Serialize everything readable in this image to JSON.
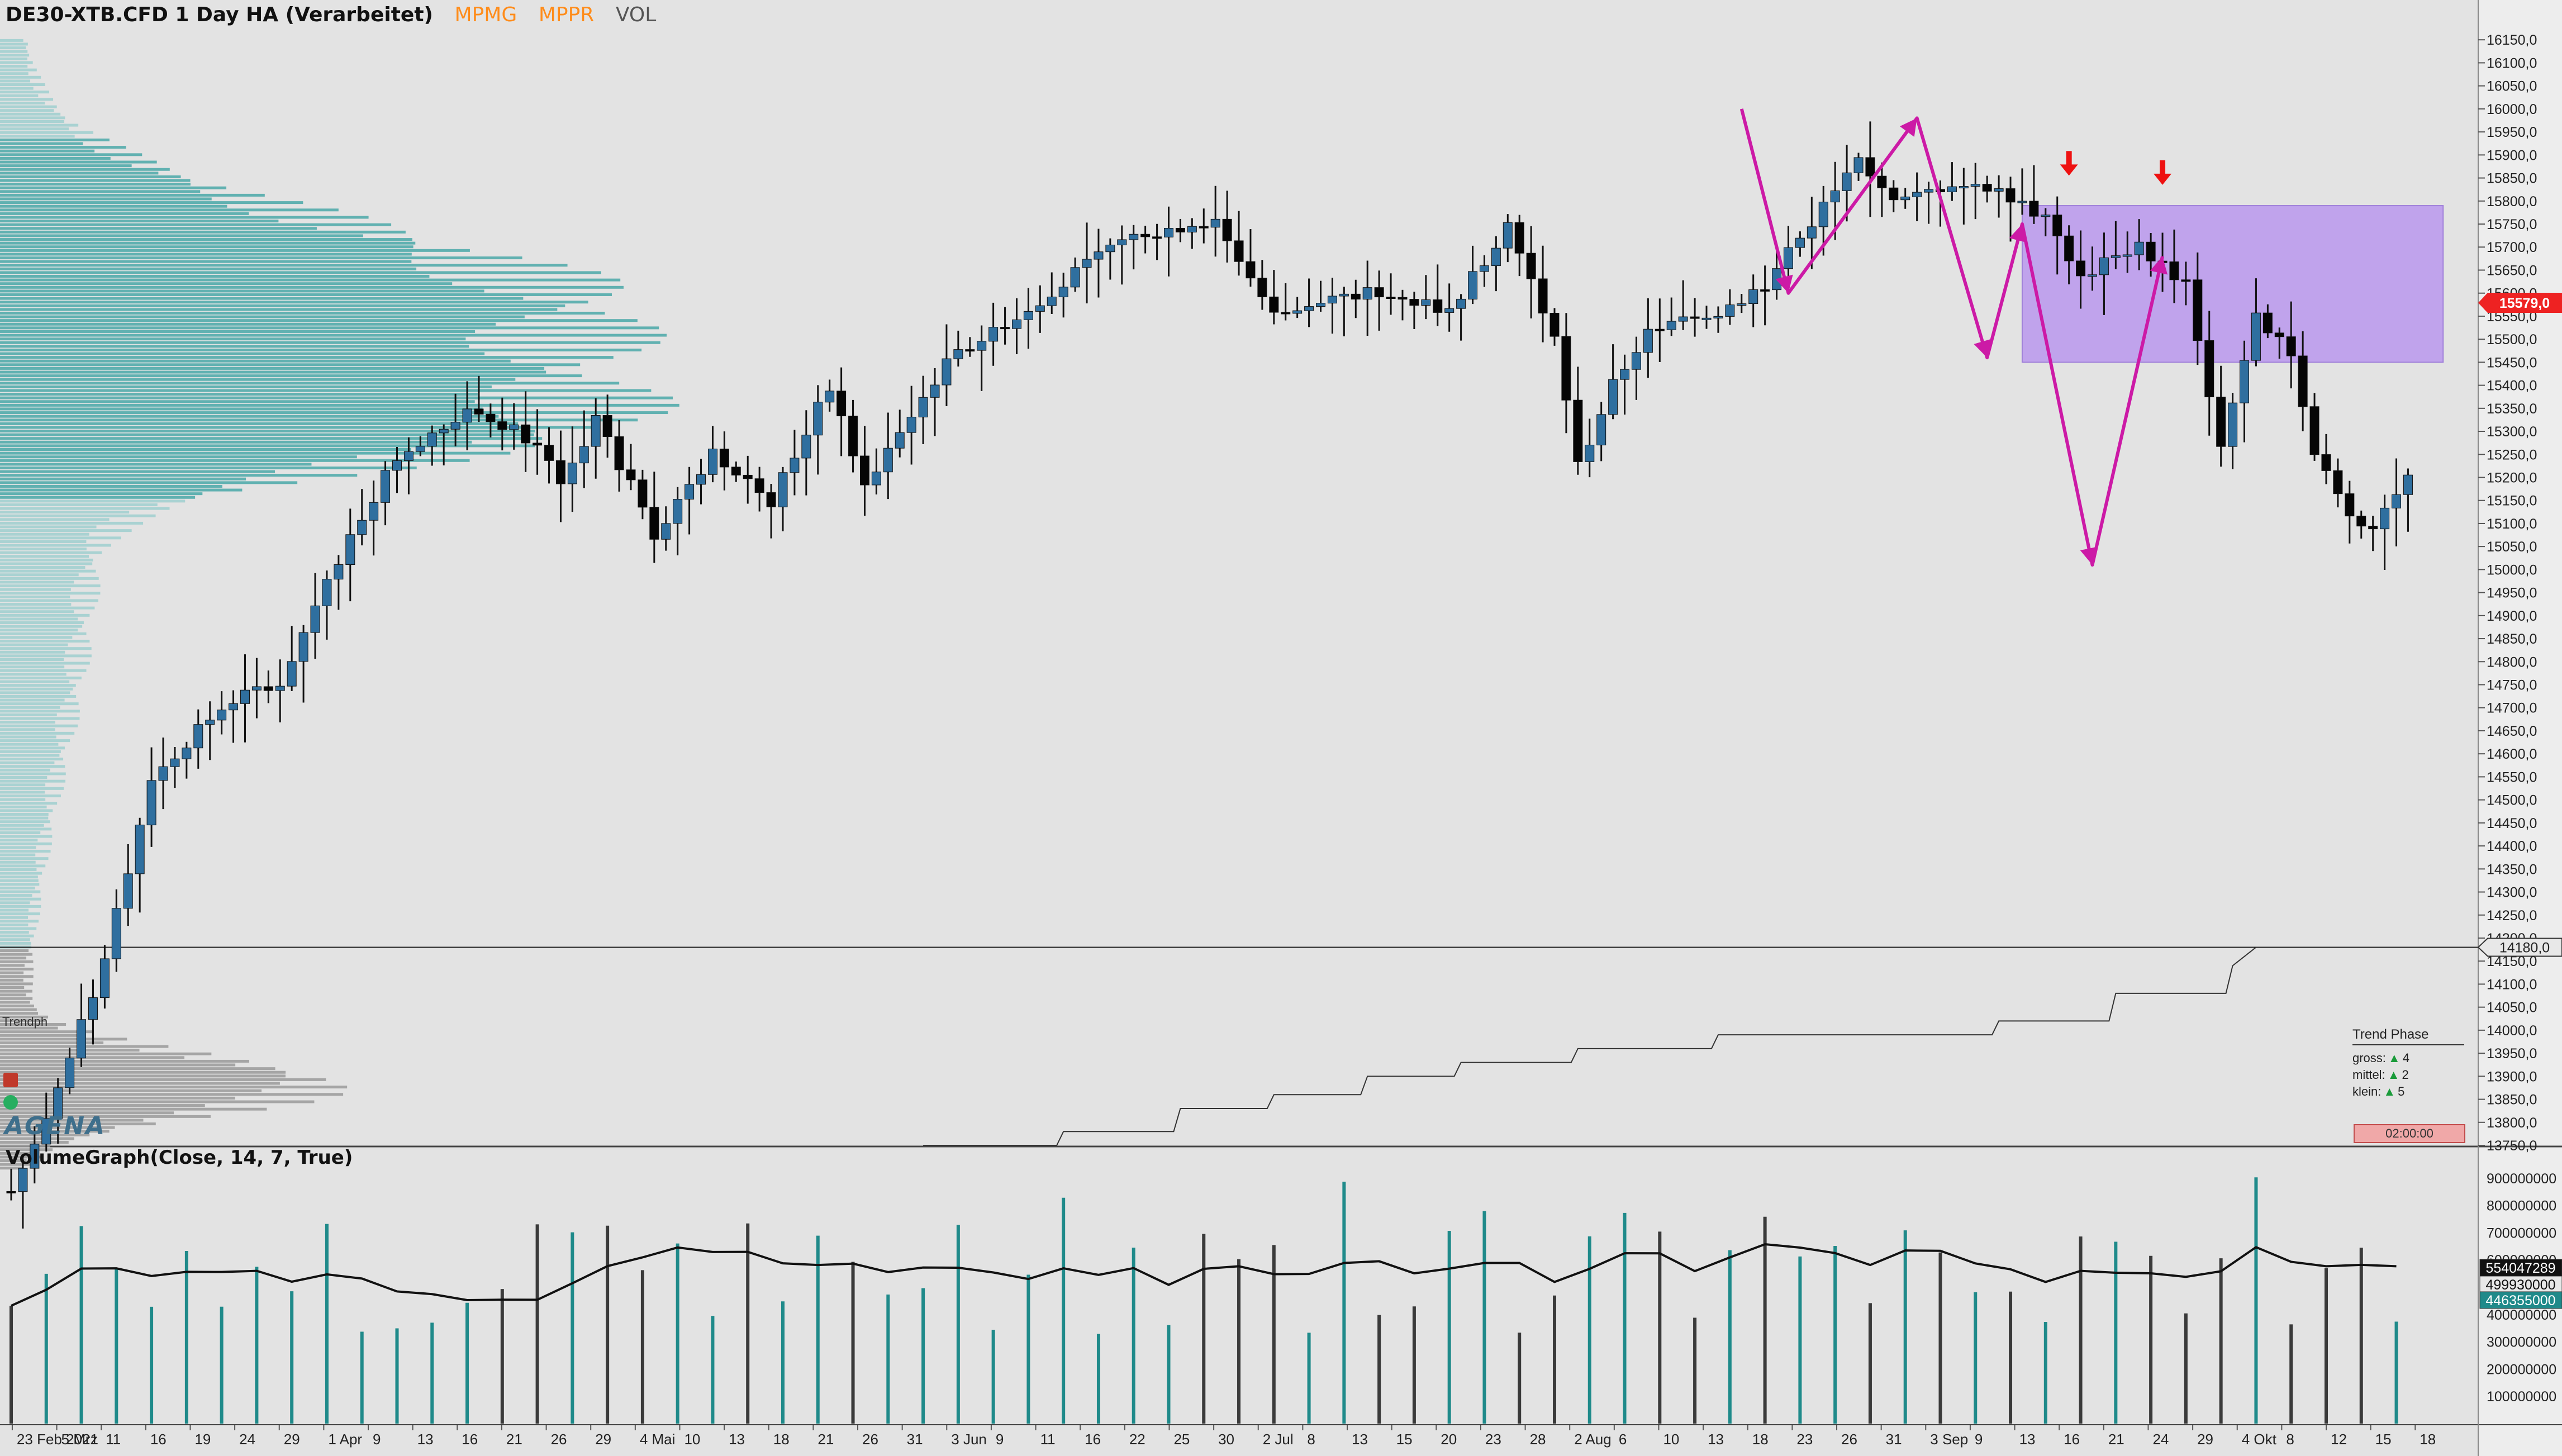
{
  "header": {
    "title": "DE30-XTB.CFD 1 Day HA (Verarbeitet)",
    "indicators": [
      "MPMG",
      "MPPR",
      "VOL"
    ]
  },
  "volume_panel": {
    "title": "VolumeGraph(Close, 14, 7, True)"
  },
  "trend_phase": {
    "title": "Trend Phase",
    "rows": [
      {
        "label": "gross:",
        "value": "4"
      },
      {
        "label": "mittel:",
        "value": "2"
      },
      {
        "label": "klein:",
        "value": "5"
      }
    ]
  },
  "clock": "02:00:00",
  "logo": "AGENA",
  "trendph_label": "Trendph",
  "colors": {
    "bull": "#2f6f9f",
    "bear": "#050505",
    "zigzag": "#cc1aa6",
    "zone": "#b58ef0",
    "arrow": "#ee1111",
    "profile": "#3aa0a0",
    "volume_up": "#1f8a8a",
    "volume_down": "#3a3a3a",
    "price_tag": "#ee2222"
  },
  "chart_data": [
    {
      "type": "candlestick",
      "title": "DE30-XTB.CFD 1 Day HA (Verarbeitet)",
      "x_labels": [
        "23 Feb 2021",
        "5 Mrz",
        "11",
        "16",
        "19",
        "24",
        "29",
        "1 Apr",
        "9",
        "13",
        "16",
        "21",
        "26",
        "29",
        "4 Mai",
        "10",
        "13",
        "18",
        "21",
        "26",
        "31",
        "3 Jun",
        "9",
        "11",
        "16",
        "22",
        "25",
        "30",
        "2 Jul",
        "8",
        "13",
        "15",
        "20",
        "23",
        "28",
        "2 Aug",
        "6",
        "10",
        "13",
        "18",
        "23",
        "26",
        "31",
        "3 Sep",
        "9",
        "13",
        "16",
        "21",
        "24",
        "29",
        "4 Okt",
        "8",
        "12",
        "15",
        "18"
      ],
      "y_ticks": [
        "16150,0",
        "16100,0",
        "16050,0",
        "16000,0",
        "15950,0",
        "15900,0",
        "15850,0",
        "15800,0",
        "15750,0",
        "15700,0",
        "15650,0",
        "15600,0",
        "15550,0",
        "15500,0",
        "15450,0",
        "15400,0",
        "15350,0",
        "15300,0",
        "15250,0",
        "15200,0",
        "15150,0",
        "15100,0",
        "15050,0",
        "15000,0",
        "14950,0",
        "14900,0",
        "14850,0",
        "14800,0",
        "14750,0",
        "14700,0",
        "14650,0",
        "14600,0",
        "14550,0",
        "14500,0",
        "14450,0",
        "14400,0",
        "14350,0",
        "14300,0",
        "14250,0",
        "14200,0",
        "14150,0",
        "14100,0",
        "14050,0",
        "14000,0",
        "13950,0",
        "13900,0",
        "13850,0",
        "13800,0",
        "13750,0"
      ],
      "ylim": [
        13750,
        16200
      ],
      "current_price": "15579,0",
      "reference_price": "14180,0",
      "waypoints": [
        [
          0,
          13650
        ],
        [
          3,
          13800
        ],
        [
          8,
          14150
        ],
        [
          12,
          14550
        ],
        [
          16,
          14650
        ],
        [
          19,
          14720
        ],
        [
          23,
          14750
        ],
        [
          27,
          14980
        ],
        [
          33,
          15250
        ],
        [
          40,
          15350
        ],
        [
          45,
          15270
        ],
        [
          47,
          15180
        ],
        [
          50,
          15330
        ],
        [
          55,
          15080
        ],
        [
          60,
          15250
        ],
        [
          65,
          15150
        ],
        [
          70,
          15400
        ],
        [
          73,
          15180
        ],
        [
          80,
          15450
        ],
        [
          86,
          15550
        ],
        [
          95,
          15720
        ],
        [
          103,
          15760
        ],
        [
          108,
          15550
        ],
        [
          112,
          15580
        ],
        [
          116,
          15600
        ],
        [
          123,
          15560
        ],
        [
          128,
          15750
        ],
        [
          132,
          15500
        ],
        [
          134,
          15220
        ],
        [
          137,
          15400
        ],
        [
          140,
          15520
        ],
        [
          146,
          15560
        ],
        [
          150,
          15620
        ],
        [
          156,
          15820
        ],
        [
          158,
          15880
        ],
        [
          161,
          15790
        ],
        [
          166,
          15840
        ],
        [
          170,
          15830
        ],
        [
          174,
          15760
        ],
        [
          177,
          15640
        ],
        [
          182,
          15700
        ],
        [
          186,
          15620
        ],
        [
          189,
          15270
        ],
        [
          192,
          15550
        ],
        [
          195,
          15470
        ],
        [
          197,
          15250
        ],
        [
          200,
          15120
        ],
        [
          202,
          15090
        ],
        [
          205,
          15200
        ]
      ],
      "zone": {
        "from_index": 172,
        "to_index": 208,
        "low": 15450,
        "high": 15790
      },
      "zigzag": [
        [
          148,
          16000
        ],
        [
          152,
          15600
        ],
        [
          163,
          15980
        ],
        [
          169,
          15460
        ],
        [
          172,
          15750
        ],
        [
          178,
          15010
        ],
        [
          184,
          15680
        ]
      ],
      "arrows": [
        [
          176,
          15860
        ],
        [
          184,
          15840
        ]
      ],
      "trend_line_steps": [
        [
          78,
          13750
        ],
        [
          90,
          13780
        ],
        [
          100,
          13830
        ],
        [
          108,
          13860
        ],
        [
          116,
          13900
        ],
        [
          124,
          13930
        ],
        [
          134,
          13960
        ],
        [
          146,
          13990
        ],
        [
          170,
          14020
        ],
        [
          180,
          14080
        ],
        [
          190,
          14140
        ]
      ]
    },
    {
      "type": "bar",
      "title": "VolumeGraph(Close, 14, 7, True)",
      "y_ticks": [
        "900000000",
        "800000000",
        "700000000",
        "600000000",
        "500000000",
        "400000000",
        "300000000",
        "200000000",
        "100000000"
      ],
      "ylim": [
        0,
        1000000000
      ],
      "labels": [
        "554047289",
        "499930000",
        "446355000"
      ]
    }
  ]
}
